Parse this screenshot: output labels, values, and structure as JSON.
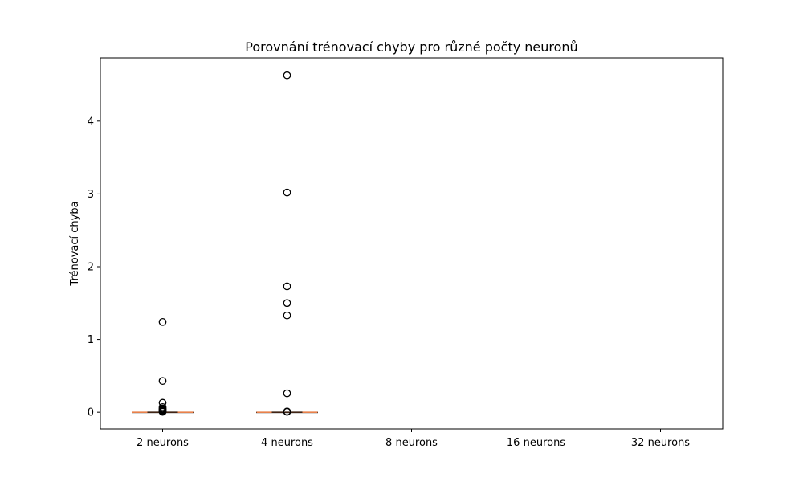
{
  "chart_data": {
    "type": "box",
    "title": "Porovnání trénovací chyby pro různé počty neuronů",
    "xlabel": "",
    "ylabel": "Trénovací chyba",
    "categories": [
      "2 neurons",
      "4 neurons",
      "8 neurons",
      "16 neurons",
      "32 neurons"
    ],
    "ylim": [
      -0.23,
      4.87
    ],
    "yticks": [
      0,
      1,
      2,
      3,
      4
    ],
    "grid": false,
    "boxes": [
      {
        "category": "2 neurons",
        "q1": 0.0,
        "median": 0.0,
        "q3": 0.0,
        "whisker_low": 0.0,
        "whisker_high": 0.0,
        "outliers": [
          1.24,
          0.43,
          0.13,
          0.07,
          0.05,
          0.04,
          0.03,
          0.02,
          0.01,
          0.005
        ]
      },
      {
        "category": "4 neurons",
        "q1": 0.0,
        "median": 0.0,
        "q3": 0.0,
        "whisker_low": 0.0,
        "whisker_high": 0.0,
        "outliers": [
          4.63,
          3.02,
          1.73,
          1.5,
          1.33,
          0.26,
          0.01,
          0.005
        ]
      },
      {
        "category": "8 neurons",
        "q1": null,
        "median": null,
        "q3": null,
        "whisker_low": null,
        "whisker_high": null,
        "outliers": []
      },
      {
        "category": "16 neurons",
        "q1": null,
        "median": null,
        "q3": null,
        "whisker_low": null,
        "whisker_high": null,
        "outliers": []
      },
      {
        "category": "32 neurons",
        "q1": null,
        "median": null,
        "q3": null,
        "whisker_low": null,
        "whisker_high": null,
        "outliers": []
      }
    ],
    "colors": {
      "median": "#e8804a",
      "box": "#000000",
      "outlier": "#000000"
    }
  }
}
